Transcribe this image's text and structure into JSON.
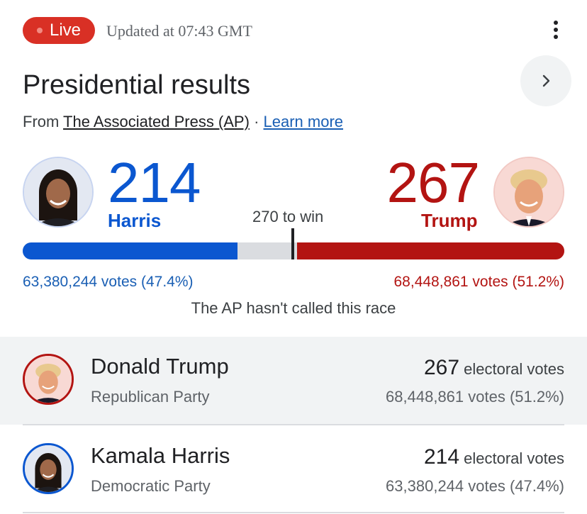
{
  "header": {
    "live_label": "Live",
    "updated_text": "Updated at 07:43 GMT",
    "menu_icon": "more-vert-icon"
  },
  "title": "Presidential results",
  "source": {
    "prefix": "From",
    "publisher": "The Associated Press (AP)",
    "separator": "·",
    "learn_more": "Learn more"
  },
  "colors": {
    "democrat": "#0b57d0",
    "republican": "#b31412",
    "live": "#d93025"
  },
  "tally": {
    "harris": {
      "electoral": "214",
      "name": "Harris",
      "votes_text": "63,380,244 votes (47.4%)",
      "share": 0.396
    },
    "trump": {
      "electoral": "267",
      "name": "Trump",
      "votes_text": "68,448,861 votes (51.2%)",
      "share": 0.494
    },
    "to_win": "270 to win",
    "status": "The AP hasn't called this race"
  },
  "candidates": [
    {
      "name": "Donald Trump",
      "party": "Republican Party",
      "electoral": "267",
      "electoral_label": "electoral votes",
      "votes_text": "68,448,861 votes (51.2%)"
    },
    {
      "name": "Kamala Harris",
      "party": "Democratic Party",
      "electoral": "214",
      "electoral_label": "electoral votes",
      "votes_text": "63,380,244 votes (47.4%)"
    }
  ]
}
